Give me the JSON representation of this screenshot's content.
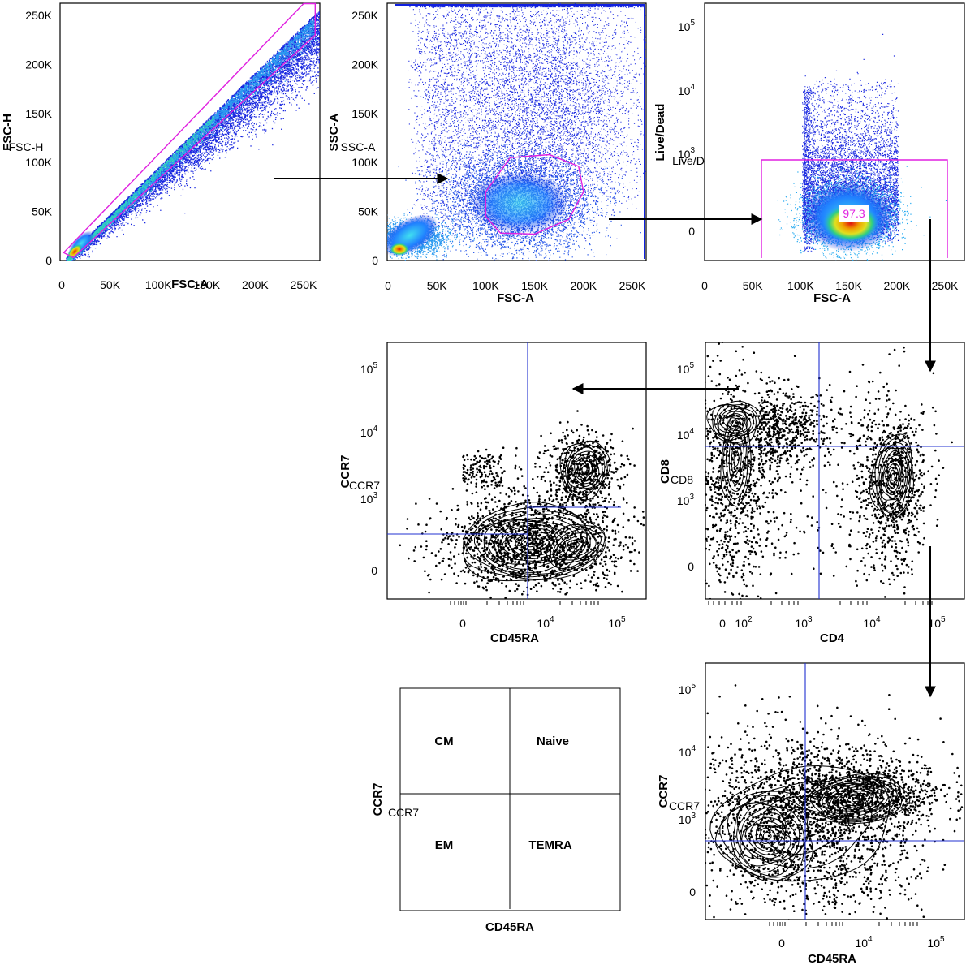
{
  "chart_data": [
    {
      "id": "p1",
      "type": "scatter",
      "plot_style": "density-dot-plot",
      "xlabel": "FSC-A",
      "ylabel": "FSC-H",
      "ylabel_overlay": "FSC-H",
      "x_scale": "linear",
      "y_scale": "linear",
      "xlim": [
        0,
        262144
      ],
      "ylim": [
        0,
        262144
      ],
      "x_ticks": [
        "0",
        "50K",
        "100K",
        "150K",
        "200K",
        "250K"
      ],
      "x_tick_values": [
        0,
        50000,
        100000,
        150000,
        200000,
        250000
      ],
      "y_ticks": [
        "0",
        "50K",
        "100K",
        "150K",
        "200K",
        "250K"
      ],
      "y_tick_values": [
        0,
        50000,
        100000,
        150000,
        200000,
        250000
      ],
      "gate": {
        "shape": "polygon",
        "color": "#e020e0",
        "points": [
          [
            2000,
            8000
          ],
          [
            12000,
            3000
          ],
          [
            262000,
            230000
          ],
          [
            262000,
            262000
          ],
          [
            250000,
            262000
          ]
        ]
      }
    },
    {
      "id": "p2",
      "type": "scatter",
      "plot_style": "density-dot-plot",
      "xlabel": "FSC-A",
      "ylabel": "SSC-A",
      "ylabel_overlay": "SSC-A",
      "x_scale": "linear",
      "y_scale": "linear",
      "xlim": [
        0,
        262144
      ],
      "ylim": [
        0,
        262144
      ],
      "x_ticks": [
        "0",
        "50K",
        "100K",
        "150K",
        "200K",
        "250K"
      ],
      "x_tick_values": [
        0,
        50000,
        100000,
        150000,
        200000,
        250000
      ],
      "y_ticks": [
        "0",
        "50K",
        "100K",
        "150K",
        "200K",
        "250K"
      ],
      "y_tick_values": [
        0,
        50000,
        100000,
        150000,
        200000,
        250000
      ],
      "gate": {
        "shape": "polygon",
        "color": "#e020e0",
        "points": [
          [
            100000,
            70000
          ],
          [
            125000,
            105000
          ],
          [
            165000,
            108000
          ],
          [
            195000,
            96000
          ],
          [
            200000,
            70000
          ],
          [
            185000,
            42000
          ],
          [
            150000,
            27000
          ],
          [
            115000,
            28000
          ],
          [
            100000,
            45000
          ]
        ]
      }
    },
    {
      "id": "p3",
      "type": "scatter",
      "plot_style": "density-dot-plot",
      "xlabel": "FSC-A",
      "ylabel": "Live/Dead",
      "ylabel_overlay": "Live/D",
      "x_scale": "linear",
      "y_scale": "biexponential",
      "xlim": [
        0,
        262144
      ],
      "x_ticks": [
        "0",
        "50K",
        "100K",
        "150K",
        "200K",
        "250K"
      ],
      "x_tick_values": [
        0,
        50000,
        100000,
        150000,
        200000,
        250000
      ],
      "y_ticks": [
        "0",
        "10^3",
        "10^4",
        "10^5"
      ],
      "gate": {
        "shape": "rectangle",
        "color": "#e020e0",
        "x_range": [
          60000,
          248000
        ],
        "y_top": "10^3",
        "label": "97.3"
      }
    },
    {
      "id": "p4",
      "type": "contour",
      "plot_style": "contour-with-outliers",
      "xlabel": "CD4",
      "ylabel": "CD8",
      "ylabel_overlay": "CD8",
      "x_scale": "biexponential",
      "y_scale": "biexponential",
      "x_ticks": [
        "0",
        "10^2",
        "10^3",
        "10^4",
        "10^5"
      ],
      "y_ticks": [
        "0",
        "10^3",
        "10^4",
        "10^5"
      ],
      "quadrant_lines": {
        "x": "1.5x10^3",
        "y": "6x10^3"
      }
    },
    {
      "id": "p5",
      "type": "contour",
      "plot_style": "contour-with-outliers",
      "xlabel": "CD45RA",
      "ylabel": "CCR7",
      "ylabel_overlay": "CCR7",
      "x_scale": "biexponential",
      "y_scale": "biexponential",
      "x_ticks": [
        "0",
        "10^4",
        "10^5"
      ],
      "y_ticks": [
        "0",
        "10^3",
        "10^4",
        "10^5"
      ]
    },
    {
      "id": "p6",
      "type": "contour",
      "plot_style": "contour-with-outliers",
      "xlabel": "CD45RA",
      "ylabel": "CCR7",
      "ylabel_overlay": "CCR7",
      "x_scale": "biexponential",
      "y_scale": "biexponential",
      "x_ticks": [
        "0",
        "10^4",
        "10^5"
      ],
      "y_ticks": [
        "0",
        "10^3",
        "10^4",
        "10^5"
      ]
    }
  ],
  "legend_panel": {
    "xlabel": "CD45RA",
    "ylabel": "CCR7",
    "ylabel_overlay": "CCR7",
    "quadrants": [
      "CM",
      "Naive",
      "EM",
      "TEMRA"
    ]
  },
  "colors": {
    "gate": "#e020e0",
    "quadrant_line": "#2030d0",
    "density_low": "#1010e0",
    "density_high": "#e01010"
  }
}
